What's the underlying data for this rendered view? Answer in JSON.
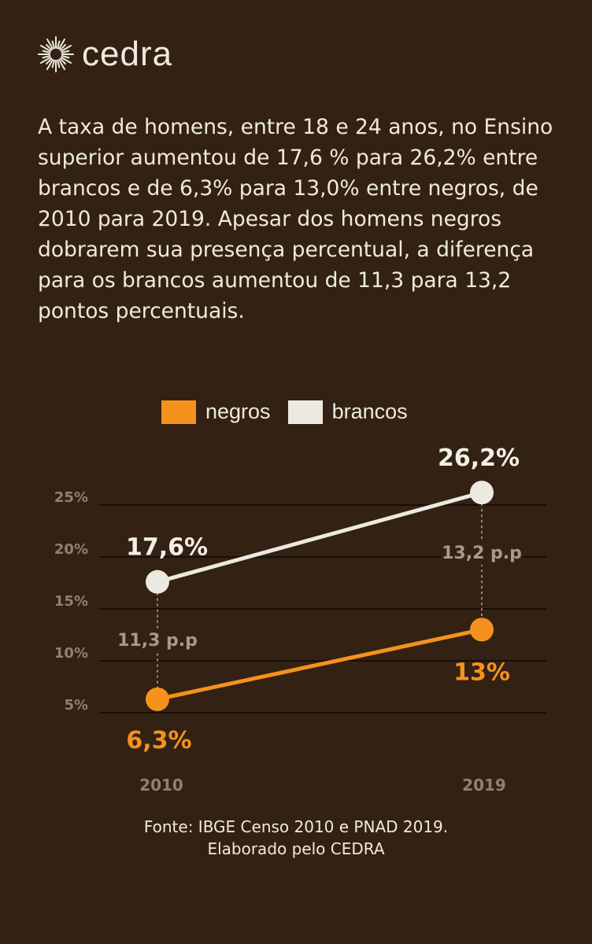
{
  "brand": {
    "name": "cedra",
    "icon": "sun-icon"
  },
  "description": "A taxa de homens, entre 18 e 24 anos, no Ensino superior aumentou de 17,6 % para 26,2% entre brancos e de 6,3% para 13,0% entre negros, de 2010 para 2019. Apesar dos homens negros dobrarem sua presença percentual, a diferença para os brancos aumentou de 11,3 para 13,2 pontos percentuais.",
  "legend": [
    {
      "label": "negros",
      "color": "#f5921e"
    },
    {
      "label": "brancos",
      "color": "#ece9e0"
    }
  ],
  "chart_data": {
    "type": "line",
    "x": [
      "2010",
      "2019"
    ],
    "y_ticks": [
      5,
      10,
      15,
      20,
      25
    ],
    "y_tick_labels": [
      "5%",
      "10%",
      "15%",
      "20%",
      "25%"
    ],
    "ylim": [
      0,
      30
    ],
    "grid": true,
    "series": [
      {
        "name": "brancos",
        "values": [
          17.6,
          26.2
        ],
        "labels": [
          "17,6%",
          "26,2%"
        ],
        "color": "#ece9e0"
      },
      {
        "name": "negros",
        "values": [
          6.3,
          13.0
        ],
        "labels": [
          "6,3%",
          "13%"
        ],
        "color": "#f5921e"
      }
    ],
    "gaps": [
      {
        "x": "2010",
        "label": "11,3 p.p"
      },
      {
        "x": "2019",
        "label": "13,2 p.p"
      }
    ]
  },
  "source": {
    "line1": "Fonte: IBGE Censo 2010 e PNAD 2019.",
    "line2": "Elaborado pelo CEDRA"
  }
}
